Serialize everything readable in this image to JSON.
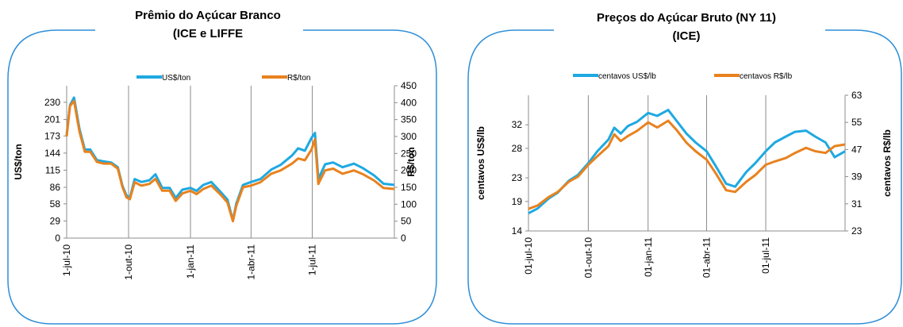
{
  "colors": {
    "usd": "#1ea9e1",
    "brl": "#e8821e",
    "frame": "#2f8fd8"
  },
  "chart_data": [
    {
      "type": "line",
      "title": [
        "Prêmio do Açúcar Branco",
        "(ICE e LIFFE"
      ],
      "ylabel": "US$/ton",
      "y2label": "R$/ton",
      "ylim": [
        0,
        258
      ],
      "y2lim": [
        0,
        450
      ],
      "yticks": [
        "0",
        "29",
        "58",
        "86",
        "115",
        "144",
        "173",
        "201",
        "230"
      ],
      "y2ticks": [
        "0",
        "50",
        "100",
        "150",
        "200",
        "250",
        "300",
        "350",
        "400",
        "450"
      ],
      "xticks": [
        "1-jul-10",
        "1-out-10",
        "1-jan-11",
        "1-abr-11",
        "1-jul-11"
      ],
      "x_range": [
        "2010-07-01",
        "2011-10-31"
      ],
      "legend_position": "top",
      "series": [
        {
          "name": "US$/ton",
          "axis": "left",
          "color": "#1ea9e1",
          "x": [
            "2010-07-01",
            "2010-07-06",
            "2010-07-12",
            "2010-07-20",
            "2010-07-28",
            "2010-08-05",
            "2010-08-15",
            "2010-08-25",
            "2010-09-05",
            "2010-09-15",
            "2010-09-22",
            "2010-09-28",
            "2010-10-03",
            "2010-10-10",
            "2010-10-20",
            "2010-11-01",
            "2010-11-10",
            "2010-11-20",
            "2010-12-01",
            "2010-12-10",
            "2010-12-20",
            "2011-01-01",
            "2011-01-10",
            "2011-01-20",
            "2011-02-01",
            "2011-02-15",
            "2011-02-25",
            "2011-03-05",
            "2011-03-10",
            "2011-03-20",
            "2011-04-01",
            "2011-04-15",
            "2011-05-01",
            "2011-05-15",
            "2011-06-01",
            "2011-06-10",
            "2011-06-20",
            "2011-06-30",
            "2011-07-05",
            "2011-07-10",
            "2011-07-20",
            "2011-08-01",
            "2011-08-15",
            "2011-09-01",
            "2011-09-15",
            "2011-10-01",
            "2011-10-15",
            "2011-10-31"
          ],
          "values": [
            175,
            225,
            238,
            185,
            150,
            150,
            132,
            130,
            128,
            120,
            88,
            72,
            68,
            100,
            95,
            98,
            108,
            85,
            85,
            68,
            82,
            85,
            80,
            90,
            95,
            78,
            65,
            30,
            58,
            90,
            95,
            100,
            116,
            124,
            140,
            152,
            148,
            170,
            178,
            100,
            125,
            128,
            120,
            126,
            118,
            106,
            92,
            90
          ]
        },
        {
          "name": "R$/ton",
          "axis": "right",
          "color": "#e8821e",
          "x": [
            "2010-07-01",
            "2010-07-06",
            "2010-07-12",
            "2010-07-20",
            "2010-07-28",
            "2010-08-05",
            "2010-08-15",
            "2010-08-25",
            "2010-09-05",
            "2010-09-15",
            "2010-09-22",
            "2010-09-28",
            "2010-10-03",
            "2010-10-10",
            "2010-10-20",
            "2010-11-01",
            "2010-11-10",
            "2010-11-20",
            "2010-12-01",
            "2010-12-10",
            "2010-12-20",
            "2011-01-01",
            "2011-01-10",
            "2011-01-20",
            "2011-02-01",
            "2011-02-15",
            "2011-02-25",
            "2011-03-05",
            "2011-03-10",
            "2011-03-20",
            "2011-04-01",
            "2011-04-15",
            "2011-05-01",
            "2011-05-15",
            "2011-06-01",
            "2011-06-10",
            "2011-06-20",
            "2011-06-30",
            "2011-07-05",
            "2011-07-10",
            "2011-07-20",
            "2011-08-01",
            "2011-08-15",
            "2011-09-01",
            "2011-09-15",
            "2011-10-01",
            "2011-10-15",
            "2011-10-31"
          ],
          "values": [
            300,
            390,
            405,
            315,
            255,
            255,
            225,
            220,
            220,
            205,
            150,
            120,
            115,
            165,
            155,
            160,
            175,
            140,
            140,
            110,
            132,
            140,
            130,
            145,
            155,
            128,
            105,
            50,
            95,
            150,
            155,
            165,
            190,
            200,
            220,
            235,
            230,
            262,
            292,
            160,
            200,
            205,
            190,
            200,
            188,
            170,
            148,
            145
          ]
        }
      ]
    },
    {
      "type": "line",
      "title": [
        "Preços do Açúcar Bruto (NY 11)",
        "(ICE)"
      ],
      "ylabel": "centavos  US$/lb",
      "y2label": "centavos  R$/lb",
      "ylim": [
        14,
        37
      ],
      "y2lim": [
        23,
        63
      ],
      "yticks": [
        "14",
        "19",
        "23",
        "28",
        "32"
      ],
      "y2ticks": [
        "23",
        "31",
        "39",
        "47",
        "55",
        "63"
      ],
      "xticks": [
        "01-jul-10",
        "01-out-10",
        "01-jan-11",
        "01-abr-11",
        "01-jul-11"
      ],
      "x_range": [
        "2010-07-01",
        "2011-10-31"
      ],
      "legend_position": "top",
      "series": [
        {
          "name": "centavos US$/lb",
          "axis": "left",
          "color": "#1ea9e1",
          "x": [
            "2010-07-01",
            "2010-07-15",
            "2010-08-01",
            "2010-08-15",
            "2010-09-01",
            "2010-09-15",
            "2010-10-01",
            "2010-10-15",
            "2010-11-01",
            "2010-11-10",
            "2010-11-20",
            "2010-12-01",
            "2010-12-15",
            "2011-01-01",
            "2011-01-15",
            "2011-02-01",
            "2011-02-15",
            "2011-03-01",
            "2011-03-15",
            "2011-04-01",
            "2011-04-15",
            "2011-05-01",
            "2011-05-15",
            "2011-06-01",
            "2011-06-15",
            "2011-07-01",
            "2011-07-15",
            "2011-08-01",
            "2011-08-15",
            "2011-09-01",
            "2011-09-15",
            "2011-10-01",
            "2011-10-15",
            "2011-10-31"
          ],
          "values": [
            17.0,
            17.8,
            19.5,
            20.5,
            22.5,
            23.5,
            25.5,
            27.5,
            29.5,
            31.5,
            30.5,
            31.8,
            32.5,
            34.0,
            33.5,
            34.5,
            32.5,
            30.5,
            29.0,
            27.5,
            25.0,
            22.0,
            21.5,
            24.0,
            25.5,
            27.5,
            29.0,
            30.0,
            30.8,
            31.0,
            30.0,
            29.0,
            26.5,
            27.5
          ]
        },
        {
          "name": "centavos R$/lb",
          "axis": "right",
          "color": "#e8821e",
          "x": [
            "2010-07-01",
            "2010-07-15",
            "2010-08-01",
            "2010-08-15",
            "2010-09-01",
            "2010-09-15",
            "2010-10-01",
            "2010-10-15",
            "2010-11-01",
            "2010-11-10",
            "2010-11-20",
            "2010-12-01",
            "2010-12-15",
            "2011-01-01",
            "2011-01-15",
            "2011-02-01",
            "2011-02-15",
            "2011-03-01",
            "2011-03-15",
            "2011-04-01",
            "2011-04-15",
            "2011-05-01",
            "2011-05-15",
            "2011-06-01",
            "2011-06-15",
            "2011-07-01",
            "2011-07-15",
            "2011-08-01",
            "2011-08-15",
            "2011-09-01",
            "2011-09-15",
            "2011-10-01",
            "2011-10-15",
            "2011-10-31"
          ],
          "values": [
            29.5,
            30.5,
            33.0,
            34.5,
            37.5,
            39.0,
            42.5,
            45.0,
            48.0,
            51.5,
            49.5,
            51.0,
            52.5,
            55.0,
            53.5,
            55.5,
            52.5,
            49.0,
            46.5,
            44.0,
            40.0,
            35.0,
            34.5,
            37.5,
            39.5,
            42.5,
            43.5,
            44.5,
            46.0,
            47.5,
            46.5,
            46.0,
            48.0,
            48.5
          ]
        }
      ]
    }
  ]
}
